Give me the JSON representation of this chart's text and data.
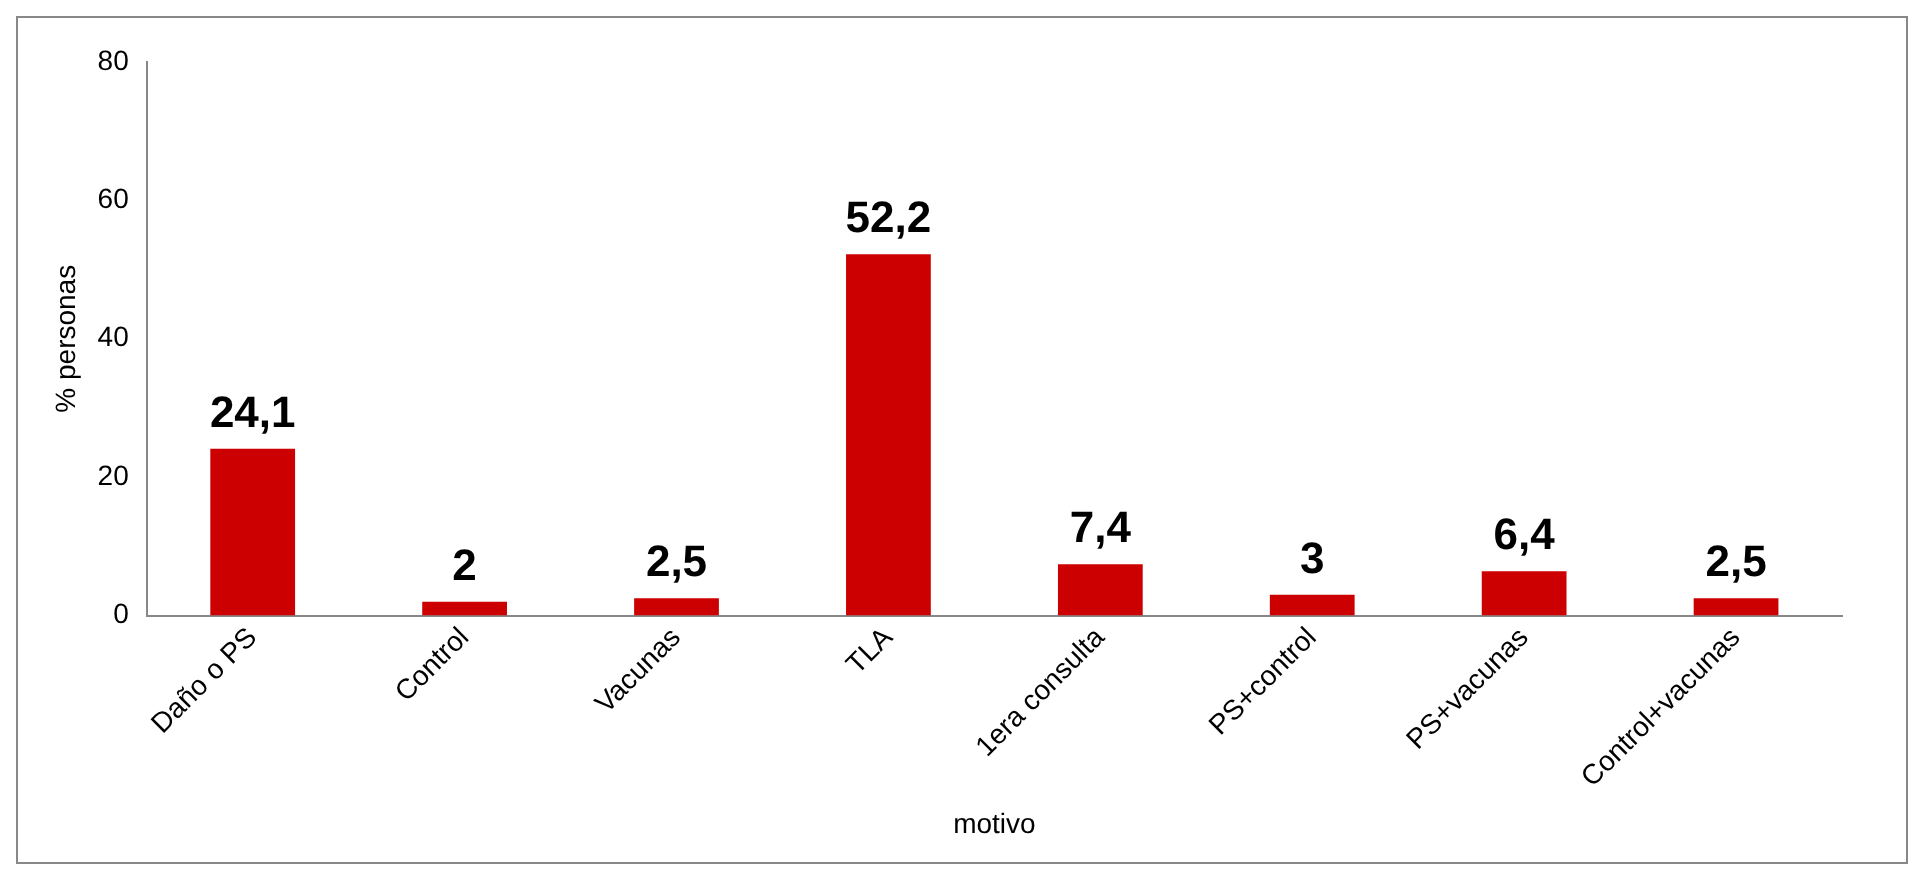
{
  "chart_data": {
    "type": "bar",
    "xlabel": "motivo",
    "ylabel": "% personas",
    "categories": [
      "Daño o PS",
      "Control",
      "Vacunas",
      "TLA",
      "1era consulta",
      "PS+control",
      "PS+vacunas",
      "Control+vacunas"
    ],
    "values": [
      24.1,
      2,
      2.5,
      52.2,
      7.4,
      3,
      6.4,
      2.5
    ],
    "value_labels": [
      "24,1",
      "2",
      "2,5",
      "52,2",
      "7,4",
      "3",
      "6,4",
      "2,5"
    ],
    "color": "#cc0000",
    "ylim": [
      0,
      80
    ],
    "yticks": [
      0,
      20,
      40,
      60,
      80
    ]
  }
}
